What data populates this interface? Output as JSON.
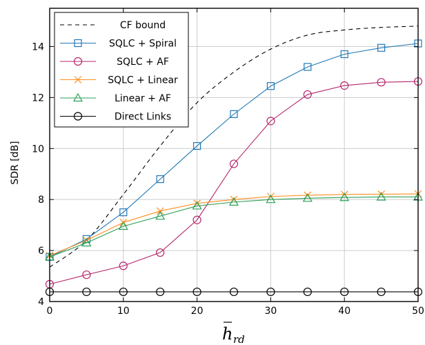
{
  "chart_data": {
    "type": "line",
    "xlabel": "h",
    "xlabel_sub": "rd",
    "ylabel": "SDR [dB]",
    "xlim": [
      0,
      50
    ],
    "ylim": [
      4,
      15.5
    ],
    "xticks": [
      0,
      10,
      20,
      30,
      40,
      50
    ],
    "yticks": [
      4,
      6,
      8,
      10,
      12,
      14
    ],
    "grid": true,
    "legend_position": "top-left",
    "series": [
      {
        "name": "CF bound",
        "color": "#000000",
        "dashed": true,
        "marker": "none",
        "x": [
          0,
          5,
          10,
          15,
          20,
          25,
          30,
          35,
          40,
          45,
          50
        ],
        "values": [
          5.35,
          6.4,
          8.2,
          10.1,
          11.8,
          13.0,
          13.9,
          14.45,
          14.65,
          14.75,
          14.8
        ]
      },
      {
        "name": "SQLC + Spiral",
        "color": "#1f77b4",
        "dashed": false,
        "marker": "square",
        "x": [
          0,
          5,
          10,
          15,
          20,
          25,
          30,
          35,
          40,
          45,
          50
        ],
        "values": [
          5.75,
          6.45,
          7.5,
          8.8,
          10.1,
          11.35,
          12.45,
          13.2,
          13.7,
          13.95,
          14.12
        ]
      },
      {
        "name": "SQLC + AF",
        "color": "#b5256c",
        "dashed": false,
        "marker": "circle",
        "x": [
          0,
          5,
          10,
          15,
          20,
          25,
          30,
          35,
          40,
          45,
          50
        ],
        "values": [
          4.68,
          5.05,
          5.4,
          5.92,
          7.2,
          9.4,
          11.08,
          12.12,
          12.47,
          12.6,
          12.63
        ]
      },
      {
        "name": "SQLC + Linear",
        "color": "#ff8c1a",
        "dashed": false,
        "marker": "x",
        "x": [
          0,
          5,
          10,
          15,
          20,
          25,
          30,
          35,
          40,
          45,
          50
        ],
        "values": [
          5.8,
          6.4,
          7.1,
          7.55,
          7.85,
          8.0,
          8.12,
          8.17,
          8.2,
          8.21,
          8.22
        ]
      },
      {
        "name": "Linear + AF",
        "color": "#2ca05a",
        "dashed": false,
        "marker": "triangle",
        "x": [
          0,
          5,
          10,
          15,
          20,
          25,
          30,
          35,
          40,
          45,
          50
        ],
        "values": [
          5.75,
          6.3,
          6.95,
          7.35,
          7.75,
          7.9,
          8.0,
          8.05,
          8.08,
          8.1,
          8.1
        ]
      },
      {
        "name": "Direct Links",
        "color": "#000000",
        "dashed": false,
        "marker": "circle",
        "x": [
          0,
          5,
          10,
          15,
          20,
          25,
          30,
          35,
          40,
          45,
          50
        ],
        "values": [
          4.38,
          4.38,
          4.38,
          4.38,
          4.38,
          4.38,
          4.38,
          4.38,
          4.38,
          4.38,
          4.38
        ]
      }
    ]
  }
}
